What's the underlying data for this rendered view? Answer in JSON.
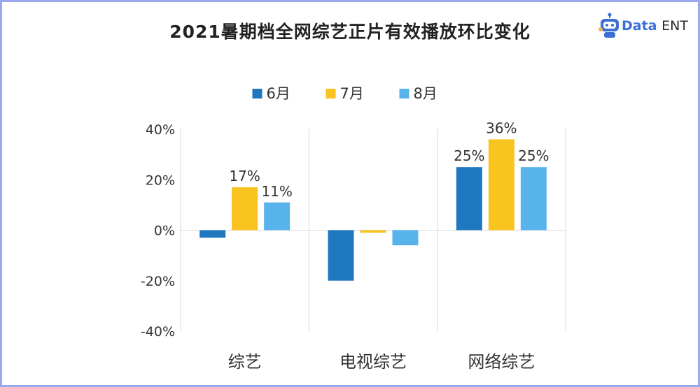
{
  "header": {
    "title": "2021暑期档全网综艺正片有效播放环比变化",
    "logo_brand": "Data",
    "logo_suffix": "ENT"
  },
  "chart_data": {
    "type": "bar",
    "title": "2021暑期档全网综艺正片有效播放环比变化",
    "categories": [
      "综艺",
      "电视综艺",
      "网络综艺"
    ],
    "series": [
      {
        "name": "6月",
        "color": "#1f77c0",
        "values": [
          -3,
          -20,
          25
        ],
        "labels": [
          "",
          "",
          "25%"
        ]
      },
      {
        "name": "7月",
        "color": "#f9c320",
        "values": [
          17,
          -1,
          36
        ],
        "labels": [
          "17%",
          "",
          "36%"
        ]
      },
      {
        "name": "8月",
        "color": "#58b2ec",
        "values": [
          11,
          -6,
          25
        ],
        "labels": [
          "11%",
          "",
          "25%"
        ]
      }
    ],
    "ylim": [
      -40,
      40
    ],
    "yticks": [
      40,
      20,
      0,
      -20,
      -40
    ],
    "ytick_labels": [
      "40%",
      "20%",
      "0%",
      "-20%",
      "-40%"
    ],
    "legend_position": "top-center",
    "grid": false
  }
}
